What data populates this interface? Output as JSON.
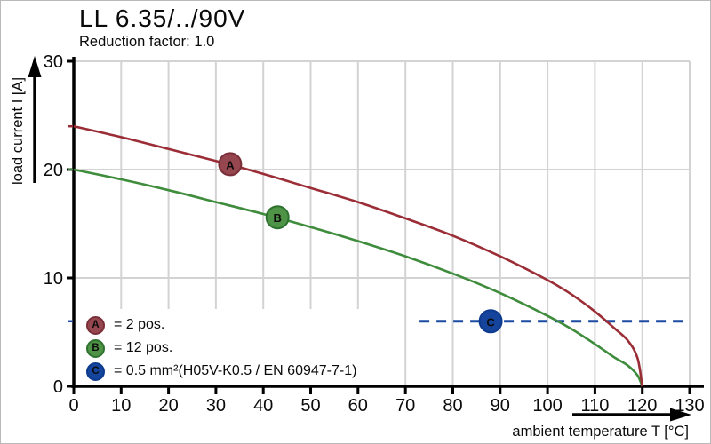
{
  "chart_data": {
    "type": "line",
    "title": "LL 6.35/../90V",
    "subtitle": "Reduction factor: 1.0",
    "xlabel": "ambient temperature T [°C]",
    "ylabel": "load current I [A]",
    "xlim": [
      0,
      130
    ],
    "ylim": [
      0,
      30
    ],
    "xticks": [
      0,
      10,
      20,
      30,
      40,
      50,
      60,
      70,
      80,
      90,
      100,
      110,
      120,
      130
    ],
    "yticks": [
      0,
      10,
      20,
      30
    ],
    "grid": true,
    "legend_position": "bottom-left",
    "series": [
      {
        "name": "A",
        "legend_label": "= 2 pos.",
        "style": "solid",
        "color": "#9b2d36",
        "marker": {
          "x": 33,
          "y": 20.5,
          "fill": "#95464e",
          "stroke": "#7a2e37"
        },
        "x": [
          0,
          10,
          20,
          30,
          40,
          50,
          60,
          70,
          80,
          90,
          100,
          105,
          110,
          114,
          117,
          119,
          120
        ],
        "y": [
          24,
          23.0,
          21.9,
          20.8,
          19.6,
          18.3,
          17.0,
          15.5,
          13.9,
          12.0,
          9.8,
          8.5,
          6.9,
          5.4,
          4.2,
          2.6,
          0
        ]
      },
      {
        "name": "B",
        "legend_label": "= 12 pos.",
        "style": "solid",
        "color": "#3e8c3c",
        "marker": {
          "x": 43,
          "y": 15.6,
          "fill": "#4f9346",
          "stroke": "#2e7230"
        },
        "x": [
          0,
          10,
          20,
          30,
          40,
          50,
          60,
          70,
          80,
          90,
          100,
          105,
          110,
          114,
          117,
          119,
          120
        ],
        "y": [
          20,
          19.1,
          18.1,
          17.0,
          15.9,
          14.7,
          13.4,
          12.0,
          10.4,
          8.6,
          6.5,
          5.3,
          3.9,
          2.7,
          1.9,
          1.0,
          0
        ]
      },
      {
        "name": "C",
        "legend_label": "= 0.5 mm²(H05V-K0.5 / EN 60947-7-1)",
        "style": "dashed",
        "color": "#1b4ba3",
        "marker": {
          "x": 88,
          "y": 6,
          "fill": "#15449c",
          "stroke": "#0d3a8e"
        },
        "x": [
          73,
          130
        ],
        "y": [
          6,
          6
        ]
      }
    ],
    "axis_marks": [
      {
        "value": 24,
        "color": "#9b2d36"
      },
      {
        "value": 20,
        "color": "#3e8c3c"
      },
      {
        "value": 6,
        "color": "#1b4ba3"
      }
    ]
  },
  "colors": {
    "background": "#ffffff",
    "grid": "#d3d3d3",
    "axis": "#000000",
    "text": "#0a0a0a"
  }
}
